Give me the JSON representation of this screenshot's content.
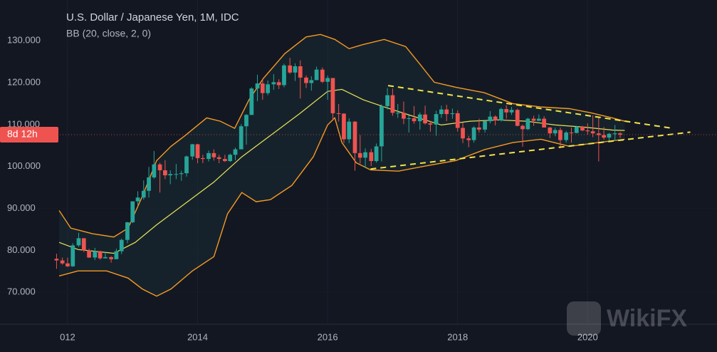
{
  "chart_data": {
    "type": "candlestick",
    "title": "U.S. Dollar / Japanese Yen, 1M, IDC",
    "subtitle": "BB (20, close, 2, 0)",
    "countdown": "8d 12h",
    "watermark": "WikiFX",
    "up_color": "#26a69a",
    "down_color": "#ef5350",
    "band_color": "#f59a23",
    "basis_color": "#e8e35b",
    "trend_color": "#f2e34b",
    "xlim": [
      2010.96,
      2021.99
    ],
    "ylim": [
      62.4,
      139.7
    ],
    "xticks": [
      {
        "value": 2012,
        "label": "012"
      },
      2014,
      2016,
      2018,
      2020
    ],
    "yticks": [
      {
        "value": 70,
        "label": "70.000"
      },
      {
        "value": 80,
        "label": "80.000"
      },
      {
        "value": 90,
        "label": "90.000"
      },
      {
        "value": 100,
        "label": "100.000"
      },
      {
        "value": 110,
        "label": "110.000"
      },
      {
        "value": 120,
        "label": "120.000"
      },
      {
        "value": 130,
        "label": "130.000"
      }
    ],
    "grid": true,
    "x": [
      2011.83,
      2011.92,
      2012.0,
      2012.08,
      2012.17,
      2012.25,
      2012.33,
      2012.42,
      2012.5,
      2012.58,
      2012.67,
      2012.75,
      2012.83,
      2012.92,
      2013.0,
      2013.08,
      2013.17,
      2013.25,
      2013.33,
      2013.42,
      2013.5,
      2013.58,
      2013.67,
      2013.75,
      2013.83,
      2013.92,
      2014.0,
      2014.08,
      2014.17,
      2014.25,
      2014.33,
      2014.42,
      2014.5,
      2014.58,
      2014.67,
      2014.75,
      2014.83,
      2014.92,
      2015.0,
      2015.08,
      2015.17,
      2015.25,
      2015.33,
      2015.42,
      2015.5,
      2015.58,
      2015.67,
      2015.75,
      2015.83,
      2015.92,
      2016.0,
      2016.08,
      2016.17,
      2016.25,
      2016.33,
      2016.42,
      2016.5,
      2016.58,
      2016.67,
      2016.75,
      2016.83,
      2016.92,
      2017.0,
      2017.08,
      2017.17,
      2017.25,
      2017.33,
      2017.42,
      2017.5,
      2017.58,
      2017.67,
      2017.75,
      2017.83,
      2017.92,
      2018.0,
      2018.08,
      2018.17,
      2018.25,
      2018.33,
      2018.42,
      2018.5,
      2018.58,
      2018.67,
      2018.75,
      2018.83,
      2018.92,
      2019.0,
      2019.08,
      2019.17,
      2019.25,
      2019.33,
      2019.42,
      2019.5,
      2019.58,
      2019.67,
      2019.75,
      2019.83,
      2019.92,
      2020.0,
      2020.08,
      2020.17,
      2020.25,
      2020.33,
      2020.42,
      2020.5
    ],
    "open": [
      78.0,
      77.6,
      76.9,
      76.2,
      81.2,
      82.9,
      80.0,
      78.3,
      79.8,
      78.1,
      78.4,
      77.9,
      79.8,
      82.5,
      86.7,
      91.7,
      92.6,
      94.2,
      97.4,
      100.5,
      99.1,
      97.9,
      98.2,
      98.2,
      98.4,
      102.4,
      105.3,
      102.0,
      101.8,
      103.2,
      102.2,
      101.8,
      101.3,
      102.8,
      104.1,
      109.6,
      112.3,
      118.6,
      119.8,
      117.5,
      119.6,
      120.1,
      119.4,
      124.1,
      122.4,
      123.9,
      121.2,
      119.9,
      120.6,
      123.1,
      120.2,
      121.1,
      112.7,
      112.6,
      106.5,
      110.7,
      103.2,
      102.1,
      103.4,
      101.3,
      104.8,
      114.4,
      117.0,
      112.8,
      112.8,
      111.4,
      111.5,
      110.8,
      112.4,
      110.3,
      110.0,
      112.5,
      113.6,
      112.5,
      112.7,
      109.2,
      106.7,
      106.3,
      109.3,
      108.8,
      110.8,
      111.9,
      111.0,
      113.7,
      112.9,
      113.5,
      109.7,
      108.9,
      111.4,
      110.9,
      111.4,
      109.3,
      107.9,
      108.7,
      106.3,
      108.1,
      108.0,
      109.5,
      108.6,
      108.4,
      107.9,
      107.5,
      106.9,
      107.8,
      107.9
    ],
    "high": [
      79.2,
      78.3,
      78.3,
      81.7,
      84.2,
      82.9,
      80.4,
      80.6,
      79.9,
      79.6,
      78.6,
      80.4,
      82.8,
      86.8,
      91.7,
      94.1,
      96.7,
      99.9,
      103.7,
      100.9,
      101.5,
      99.1,
      100.6,
      99.0,
      102.6,
      105.4,
      105.4,
      102.8,
      103.8,
      104.1,
      102.8,
      102.8,
      103.1,
      104.5,
      110.1,
      112.5,
      118.9,
      121.9,
      121.0,
      120.5,
      122.0,
      120.8,
      124.5,
      125.9,
      124.6,
      125.3,
      121.7,
      121.5,
      123.8,
      123.6,
      121.7,
      121.1,
      114.9,
      112.7,
      111.5,
      110.8,
      107.5,
      104.3,
      104.2,
      105.5,
      114.8,
      118.7,
      118.6,
      114.9,
      115.5,
      112.2,
      114.4,
      112.9,
      114.5,
      110.9,
      113.3,
      114.5,
      114.7,
      113.8,
      113.4,
      110.5,
      107.3,
      109.6,
      111.4,
      110.9,
      113.2,
      112.2,
      114.0,
      114.6,
      114.2,
      113.8,
      110.0,
      111.6,
      112.1,
      112.4,
      112.0,
      109.4,
      109.3,
      109.3,
      108.5,
      109.3,
      109.7,
      109.7,
      110.3,
      112.2,
      111.7,
      109.4,
      108.0,
      109.9,
      108.2
    ],
    "low": [
      75.6,
      76.6,
      76.0,
      76.1,
      80.8,
      79.6,
      78.2,
      77.7,
      77.8,
      78.1,
      77.1,
      77.9,
      79.1,
      81.7,
      86.5,
      90.8,
      92.1,
      92.6,
      97.1,
      93.8,
      97.0,
      95.8,
      97.0,
      96.6,
      97.6,
      101.6,
      100.8,
      100.8,
      101.2,
      101.4,
      100.8,
      101.1,
      101.1,
      101.5,
      104.1,
      105.2,
      112.3,
      115.6,
      115.9,
      117.0,
      118.3,
      118.5,
      118.9,
      122.1,
      120.4,
      116.2,
      118.7,
      118.1,
      120.6,
      119.9,
      115.9,
      110.9,
      110.7,
      105.6,
      105.6,
      99.0,
      100.7,
      99.6,
      100.1,
      100.9,
      101.2,
      113.6,
      112.1,
      111.6,
      110.1,
      108.1,
      110.2,
      108.8,
      110.0,
      108.3,
      107.3,
      111.6,
      110.8,
      111.4,
      108.3,
      105.6,
      104.6,
      105.7,
      108.1,
      108.1,
      110.3,
      109.8,
      110.7,
      111.4,
      112.3,
      109.6,
      104.7,
      108.7,
      109.7,
      110.8,
      109.3,
      106.8,
      107.2,
      104.4,
      105.7,
      105.7,
      107.9,
      108.4,
      107.6,
      107.0,
      101.2,
      106.4,
      105.9,
      106.1,
      106.8
    ],
    "close": [
      77.6,
      76.9,
      76.2,
      81.2,
      82.9,
      80.0,
      78.3,
      79.8,
      78.1,
      78.4,
      77.9,
      79.8,
      82.5,
      86.7,
      91.7,
      92.6,
      94.2,
      97.4,
      100.5,
      99.1,
      97.9,
      98.2,
      98.2,
      98.4,
      102.4,
      105.3,
      102.0,
      101.8,
      103.2,
      102.2,
      101.8,
      101.3,
      102.8,
      104.1,
      109.6,
      112.3,
      118.6,
      119.8,
      117.5,
      119.6,
      120.1,
      119.4,
      124.1,
      122.4,
      123.9,
      121.2,
      119.9,
      120.6,
      123.1,
      120.2,
      121.1,
      112.7,
      112.6,
      106.5,
      110.7,
      103.2,
      102.1,
      103.4,
      101.3,
      104.8,
      114.4,
      117.0,
      112.8,
      112.8,
      111.4,
      111.5,
      110.8,
      112.4,
      110.3,
      110.0,
      112.5,
      113.6,
      112.5,
      112.7,
      109.2,
      106.7,
      106.3,
      109.3,
      108.8,
      110.8,
      111.9,
      111.0,
      113.7,
      112.9,
      113.5,
      109.7,
      108.9,
      111.4,
      110.9,
      111.4,
      109.3,
      107.9,
      108.7,
      106.3,
      108.1,
      108.0,
      109.5,
      108.6,
      108.4,
      107.9,
      107.5,
      106.9,
      107.8,
      107.9,
      107.6
    ],
    "bands": {
      "upper": {
        "x": [
          2011.87,
          2012.05,
          2012.38,
          2012.71,
          2012.93,
          2013.15,
          2013.37,
          2013.59,
          2013.81,
          2014.14,
          2014.35,
          2014.57,
          2014.79,
          2015.01,
          2015.34,
          2015.67,
          2015.89,
          2016.11,
          2016.33,
          2016.55,
          2016.87,
          2017.2,
          2017.42,
          2017.64,
          2017.97,
          2018.41,
          2018.85,
          2019.28,
          2019.72,
          2020.05,
          2020.38,
          2020.57
        ],
        "values": [
          89.5,
          85.3,
          84.0,
          83.2,
          85.3,
          92.9,
          101.4,
          104.8,
          107.4,
          111.6,
          110.8,
          109.1,
          115.9,
          121.0,
          126.9,
          130.9,
          131.5,
          130.3,
          128.1,
          129.1,
          130.3,
          128.6,
          124.4,
          120.1,
          118.9,
          117.6,
          115.0,
          114.2,
          113.8,
          112.8,
          111.6,
          110.8
        ]
      },
      "basis": {
        "x": [
          2011.87,
          2012.16,
          2012.71,
          2013.04,
          2013.37,
          2013.81,
          2014.25,
          2014.68,
          2015.12,
          2015.56,
          2016.0,
          2016.22,
          2016.55,
          2016.87,
          2017.31,
          2017.75,
          2018.19,
          2018.63,
          2019.06,
          2019.5,
          2019.94,
          2020.38,
          2020.57
        ],
        "values": [
          81.9,
          80.2,
          79.3,
          81.9,
          86.1,
          91.2,
          96.3,
          102.3,
          107.4,
          112.5,
          117.9,
          118.4,
          115.9,
          114.2,
          112.0,
          109.9,
          110.8,
          111.1,
          110.8,
          109.9,
          109.4,
          108.7,
          108.6
        ]
      },
      "lower": {
        "x": [
          2011.87,
          2012.16,
          2012.6,
          2012.93,
          2013.15,
          2013.37,
          2013.59,
          2013.92,
          2014.25,
          2014.46,
          2014.68,
          2014.9,
          2015.12,
          2015.45,
          2015.78,
          2016.0,
          2016.11,
          2016.22,
          2016.44,
          2016.66,
          2017.09,
          2017.53,
          2017.97,
          2018.41,
          2018.85,
          2019.28,
          2019.72,
          2020.16,
          2020.57
        ],
        "values": [
          73.9,
          75.1,
          75.1,
          73.4,
          70.8,
          69.1,
          70.8,
          75.1,
          78.5,
          88.7,
          93.8,
          91.6,
          92.1,
          95.5,
          102.3,
          109.9,
          111.6,
          105.7,
          100.9,
          99.2,
          98.9,
          100.2,
          101.4,
          104.0,
          105.7,
          106.5,
          104.8,
          105.7,
          106.5
        ]
      }
    },
    "trendlines": [
      {
        "x": [
          2016.93,
          2021.31
        ],
        "y": [
          119.3,
          109.1
        ]
      },
      {
        "x": [
          2016.66,
          2021.58
        ],
        "y": [
          99.4,
          108.2
        ]
      }
    ]
  }
}
